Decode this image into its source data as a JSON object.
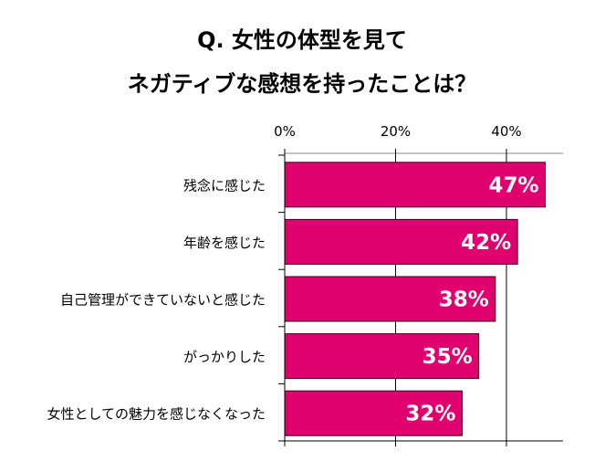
{
  "chart_data": {
    "type": "bar",
    "orientation": "horizontal",
    "title_lines": [
      "Q. 女性の体型を見て",
      "ネガティブな感想を持ったことは？"
    ],
    "categories": [
      "残念に感じた",
      "年齢を感じた",
      "自己管理ができていないと感じた",
      "がっかりした",
      "女性としての魅力を感じなくなった"
    ],
    "values": [
      47,
      42,
      38,
      35,
      32
    ],
    "data_labels": [
      "47%",
      "42%",
      "38%",
      "35%",
      "32%"
    ],
    "xticks": [
      "0%",
      "20%",
      "40%"
    ],
    "xtick_values": [
      0,
      20,
      40
    ],
    "xlim": [
      0,
      50
    ],
    "xaxis_position": "top",
    "grid": true,
    "colors": {
      "bar": "#E0006E",
      "bar_border": "#3a0020",
      "label": "#ffffff"
    }
  }
}
